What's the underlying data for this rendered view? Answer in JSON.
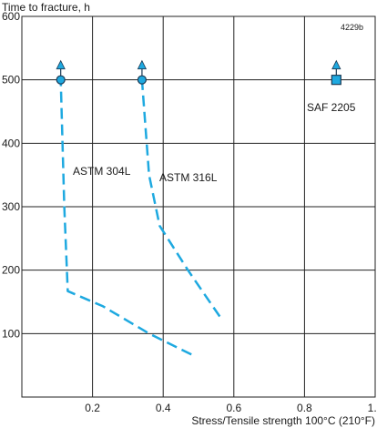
{
  "chart_data": {
    "type": "line",
    "title": "",
    "figure_id": "4229b",
    "xlabel": "Stress/Tensile strength 100°C (210°F)",
    "ylabel": "Time to fracture, h",
    "xlim": [
      0,
      1.0
    ],
    "ylim": [
      0,
      600
    ],
    "x_ticks": [
      0.2,
      0.4,
      0.6,
      0.8,
      1.0
    ],
    "x_tick_labels": [
      "0.2",
      "0.4",
      "0.6",
      "0.8",
      "1.0"
    ],
    "y_ticks": [
      100,
      200,
      300,
      400,
      500,
      600
    ],
    "y_tick_labels": [
      "100",
      "200",
      "300",
      "400",
      "500",
      "600"
    ],
    "grid": true,
    "colors": {
      "series": "#1ea9e0",
      "marker_edge": "#1a3a55",
      "grid": "#222222"
    },
    "series": [
      {
        "name": "ASTM 304L",
        "style": "dashed",
        "marker": "circle",
        "runout_arrow": true,
        "marker_point": {
          "x": 0.11,
          "y": 500
        },
        "points": [
          {
            "x": 0.48,
            "y": 67
          },
          {
            "x": 0.36,
            "y": 100
          },
          {
            "x": 0.23,
            "y": 143
          },
          {
            "x": 0.13,
            "y": 167
          },
          {
            "x": 0.12,
            "y": 300
          },
          {
            "x": 0.11,
            "y": 500
          }
        ]
      },
      {
        "name": "ASTM 316L",
        "style": "dashed",
        "marker": "circle",
        "runout_arrow": true,
        "marker_point": {
          "x": 0.34,
          "y": 500
        },
        "points": [
          {
            "x": 0.56,
            "y": 127
          },
          {
            "x": 0.47,
            "y": 200
          },
          {
            "x": 0.39,
            "y": 270
          },
          {
            "x": 0.36,
            "y": 350
          },
          {
            "x": 0.34,
            "y": 500
          }
        ]
      },
      {
        "name": "SAF 2205",
        "style": "none",
        "marker": "square",
        "runout_arrow": true,
        "marker_point": {
          "x": 0.89,
          "y": 500
        },
        "points": []
      }
    ]
  }
}
